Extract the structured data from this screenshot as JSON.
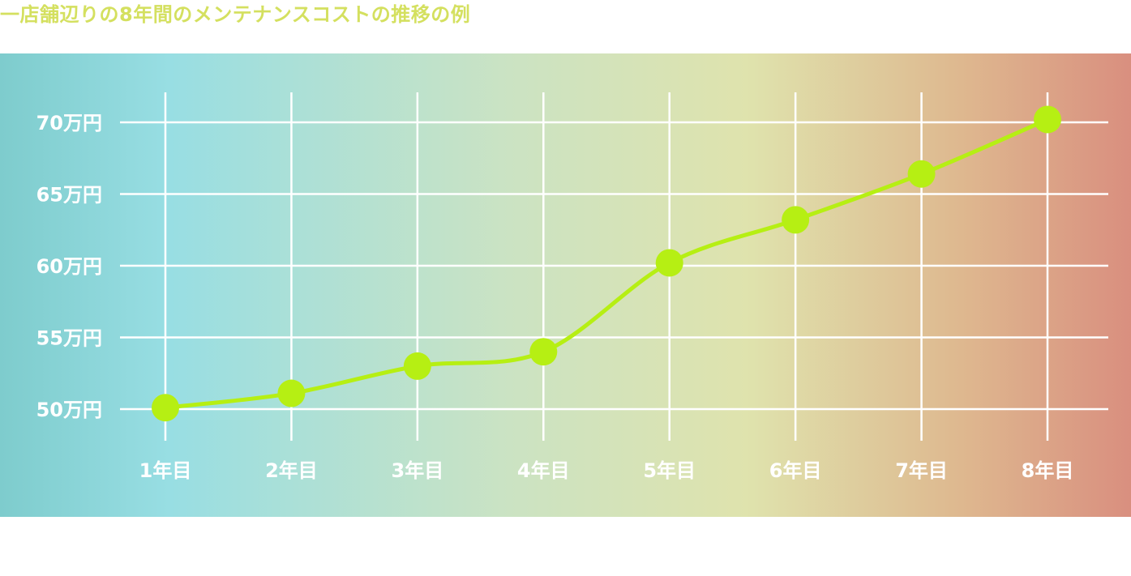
{
  "title": "一店舗辺りの8年間のメンテナンスコストの推移の例",
  "colors": {
    "title": "#d4e05f",
    "line": "#b6ef13",
    "grid": "#ffffff",
    "tick_label": "#ffffff",
    "gradient": [
      "#7ecccd",
      "#98dee3",
      "#cbe3c3",
      "#dfe3ad",
      "#deb88f",
      "#d98f7f"
    ]
  },
  "chart_data": {
    "type": "line",
    "categories": [
      "1年目",
      "2年目",
      "3年目",
      "4年目",
      "5年目",
      "6年目",
      "7年目",
      "8年目"
    ],
    "series": [
      {
        "values": [
          50.1,
          51.1,
          53.0,
          54.0,
          60.2,
          63.2,
          66.4,
          70.2
        ]
      }
    ],
    "y_ticks": [
      50,
      55,
      60,
      65,
      70
    ],
    "y_tick_labels": [
      "50万円",
      "55万円",
      "60万円",
      "65万円",
      "70万円"
    ],
    "ylim": [
      50,
      70
    ],
    "grid": true,
    "legend": "none",
    "markers": true,
    "smooth": true
  }
}
